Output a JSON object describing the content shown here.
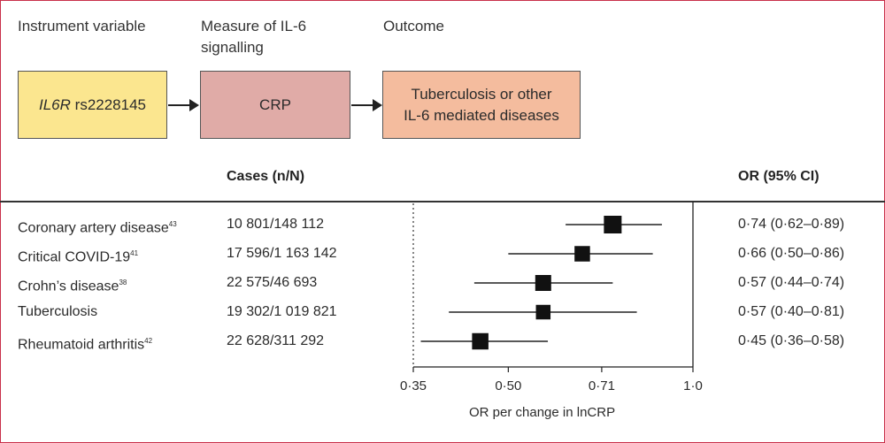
{
  "diagram": {
    "headers": {
      "instrument": "Instrument variable",
      "measure": "Measure of IL-6 signalling",
      "outcome": "Outcome"
    },
    "boxes": {
      "instrument_gene": "IL6R",
      "instrument_snp": "rs2228145",
      "measure": "CRP",
      "outcome_line1": "Tuberculosis or other",
      "outcome_line2": "IL-6 mediated diseases"
    }
  },
  "table": {
    "cases_header": "Cases (n/N)",
    "or_header": "OR (95% CI)"
  },
  "chart_data": {
    "type": "forest",
    "xlabel": "OR per change in lnCRP",
    "xscale": "log",
    "xlim": [
      0.35,
      1.0
    ],
    "xticks": [
      0.35,
      0.5,
      0.71,
      1.0
    ],
    "xtick_labels": [
      "0·35",
      "0·50",
      "0·71",
      "1·0"
    ],
    "reference_line": 1.0,
    "dotted_line_at": 0.35,
    "rows": [
      {
        "label": "Coronary artery disease",
        "ref": "43",
        "cases": "10 801/148 112",
        "or": 0.74,
        "lo": 0.62,
        "hi": 0.89,
        "or_text": "0·74 (0·62–0·89)",
        "weight": 1.0
      },
      {
        "label": "Critical COVID-19",
        "ref": "41",
        "cases": "17 596/1 163 142",
        "or": 0.66,
        "lo": 0.5,
        "hi": 0.86,
        "or_text": "0·66 (0·50–0·86)",
        "weight": 0.75
      },
      {
        "label": "Crohn’s disease",
        "ref": "38",
        "cases": "22 575/46 693",
        "or": 0.57,
        "lo": 0.44,
        "hi": 0.74,
        "or_text": "0·57 (0·44–0·74)",
        "weight": 0.8
      },
      {
        "label": "Tuberculosis",
        "ref": "",
        "cases": "19 302/1 019 821",
        "or": 0.57,
        "lo": 0.4,
        "hi": 0.81,
        "or_text": "0·57 (0·40–0·81)",
        "weight": 0.65
      },
      {
        "label": "Rheumatoid arthritis",
        "ref": "42",
        "cases": "22 628/311 292",
        "or": 0.45,
        "lo": 0.36,
        "hi": 0.58,
        "or_text": "0·45 (0·36–0·58)",
        "weight": 0.85
      }
    ]
  }
}
